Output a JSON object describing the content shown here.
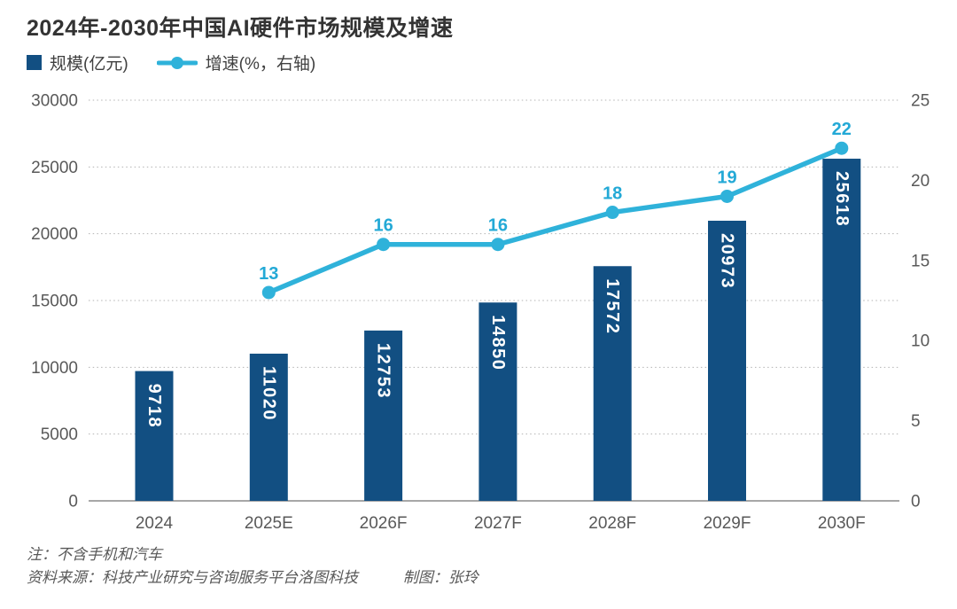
{
  "title": "2024年-2030年中国AI硬件市场规模及增速",
  "chart_data": {
    "type": "combo-bar-line",
    "title": "2024年-2030年中国AI硬件市场规模及增速",
    "categories": [
      "2024",
      "2025E",
      "2026F",
      "2027F",
      "2028F",
      "2029F",
      "2030F"
    ],
    "series": [
      {
        "name": "规模(亿元)",
        "type": "bar",
        "axis": "left",
        "color": "#124f82",
        "values": [
          9718,
          11020,
          12753,
          14850,
          17572,
          20973,
          25618
        ]
      },
      {
        "name": "增速(%，右轴)",
        "type": "line",
        "axis": "right",
        "color": "#2fb2da",
        "label_color": "#23a9d6",
        "values": [
          null,
          13,
          16,
          16,
          18,
          19,
          22
        ]
      }
    ],
    "left_axis": {
      "min": 0,
      "max": 30000,
      "step": 5000,
      "ticks": [
        0,
        5000,
        10000,
        15000,
        20000,
        25000,
        30000
      ]
    },
    "right_axis": {
      "min": 0,
      "max": 25,
      "step": 5,
      "ticks": [
        0,
        5,
        10,
        15,
        20,
        25
      ]
    },
    "grid": "horizontal-dotted",
    "legend_position": "top-left"
  },
  "notes": {
    "note": "注：不含手机和汽车",
    "source": "资料来源：科技产业研究与咨询服务平台洛图科技",
    "credit": "制图：张玲"
  }
}
